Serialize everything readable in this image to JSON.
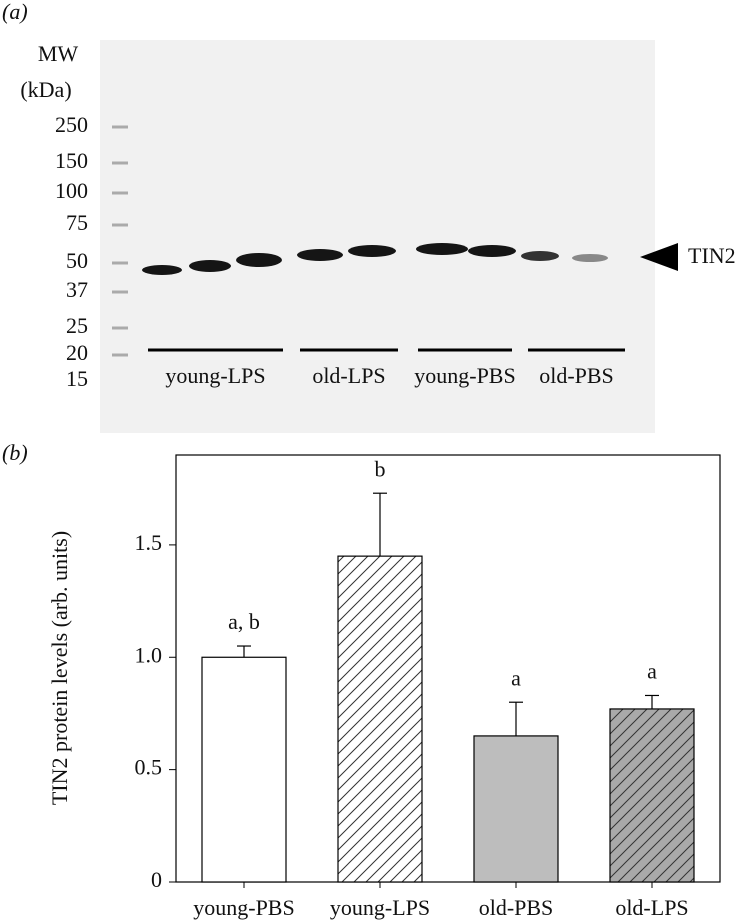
{
  "panel_a": {
    "label": "(a)",
    "mw_title": "MW",
    "mw_unit": "(kDa)",
    "mw_markers": [
      "250",
      "150",
      "100",
      "75",
      "50",
      "37",
      "25",
      "20",
      "15"
    ],
    "band_label": "TIN2",
    "groups": [
      "young-LPS",
      "old-LPS",
      "young-PBS",
      "old-PBS"
    ]
  },
  "chart_data": {
    "type": "bar",
    "panel_label": "(b)",
    "y_label": "TIN2 protein levels (arb. units)",
    "categories": [
      "young-PBS",
      "young-LPS",
      "old-PBS",
      "old-LPS"
    ],
    "values": [
      1.0,
      1.45,
      0.65,
      0.77
    ],
    "errors": [
      0.05,
      0.28,
      0.15,
      0.06
    ],
    "annotations": [
      "a, b",
      "b",
      "a",
      "a"
    ],
    "colors": [
      "#ffffff",
      "#ffffff",
      "#bdbdbd",
      "#a9a9a9"
    ],
    "hatch": [
      false,
      true,
      false,
      true
    ],
    "ylim": [
      0,
      1.9
    ],
    "yticks": [
      0,
      0.5,
      {
        "value": 1,
        "label": "1.0"
      },
      1.5
    ],
    "grid": false
  }
}
